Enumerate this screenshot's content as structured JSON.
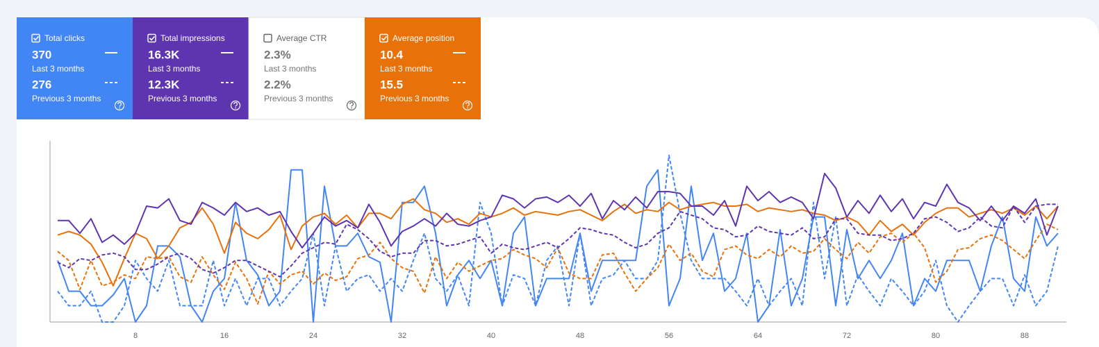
{
  "metrics": [
    {
      "name": "Total clicks",
      "checked": true,
      "color": "#4285f4",
      "current": "370",
      "current_label": "Last 3 months",
      "previous": "276",
      "previous_label": "Previous 3 months"
    },
    {
      "name": "Total impressions",
      "checked": true,
      "color": "#5e35b1",
      "current": "16.3K",
      "current_label": "Last 3 months",
      "previous": "12.3K",
      "previous_label": "Previous 3 months"
    },
    {
      "name": "Average CTR",
      "checked": false,
      "color": "#ffffff",
      "current": "2.3%",
      "current_label": "Last 3 months",
      "previous": "2.2%",
      "previous_label": "Previous 3 months"
    },
    {
      "name": "Average position",
      "checked": true,
      "color": "#e8710a",
      "current": "10.4",
      "current_label": "Last 3 months",
      "previous": "15.5",
      "previous_label": "Previous 3 months"
    }
  ],
  "chart_data": {
    "type": "line",
    "x": [
      1,
      2,
      3,
      4,
      5,
      6,
      7,
      8,
      9,
      10,
      11,
      12,
      13,
      14,
      15,
      16,
      17,
      18,
      19,
      20,
      21,
      22,
      23,
      24,
      25,
      26,
      27,
      28,
      29,
      30,
      31,
      32,
      33,
      34,
      35,
      36,
      37,
      38,
      39,
      40,
      41,
      42,
      43,
      44,
      45,
      46,
      47,
      48,
      49,
      50,
      51,
      52,
      53,
      54,
      55,
      56,
      57,
      58,
      59,
      60,
      61,
      62,
      63,
      64,
      65,
      66,
      67,
      68,
      69,
      70,
      71,
      72,
      73,
      74,
      75,
      76,
      77,
      78,
      79,
      80,
      81,
      82,
      83,
      84,
      85,
      86,
      87,
      88,
      89,
      90,
      91
    ],
    "xlim": [
      0.31,
      91.75
    ],
    "xticks": [
      8,
      16,
      24,
      32,
      40,
      48,
      56,
      64,
      72,
      80,
      88
    ],
    "ylim": [
      0,
      100
    ],
    "series": [
      {
        "color": "#4285f4",
        "dashed": true,
        "values": [
          17,
          9,
          9,
          17,
          0,
          0,
          9,
          34,
          24,
          17,
          34,
          9,
          9,
          9,
          34,
          9,
          24,
          9,
          24,
          24,
          9,
          17,
          24,
          49,
          9,
          42,
          17,
          24,
          26,
          17,
          24,
          17,
          34,
          49,
          24,
          17,
          26,
          9,
          66,
          49,
          9,
          26,
          24,
          9,
          34,
          42,
          9,
          49,
          9,
          24,
          26,
          34,
          24,
          24,
          34,
          92,
          60,
          34,
          24,
          24,
          24,
          17,
          9,
          24,
          9,
          17,
          24,
          9,
          66,
          24,
          58,
          9,
          26,
          17,
          9,
          24,
          17,
          9,
          17,
          34,
          9,
          0,
          9,
          17,
          24,
          24,
          9,
          26,
          9,
          17,
          42
        ]
      },
      {
        "color": "#4285f4",
        "dashed": false,
        "values": [
          34,
          17,
          17,
          9,
          9,
          15,
          24,
          0,
          9,
          42,
          42,
          36,
          9,
          0,
          17,
          24,
          66,
          34,
          26,
          9,
          17,
          84,
          84,
          0,
          75,
          42,
          42,
          49,
          36,
          33,
          0,
          66,
          66,
          75,
          49,
          9,
          26,
          34,
          24,
          34,
          9,
          49,
          58,
          9,
          24,
          24,
          24,
          49,
          17,
          34,
          34,
          34,
          34,
          75,
          84,
          9,
          24,
          75,
          34,
          49,
          17,
          24,
          49,
          0,
          9,
          51,
          9,
          24,
          58,
          58,
          9,
          51,
          24,
          34,
          24,
          34,
          49,
          9,
          24,
          17,
          34,
          34,
          34,
          17,
          42,
          58,
          24,
          17,
          58,
          42,
          49
        ]
      },
      {
        "color": "#e8710a",
        "dashed": true,
        "values": [
          39,
          34,
          18,
          34,
          20,
          22,
          26,
          24,
          36,
          35,
          36,
          25,
          22,
          36,
          26,
          18,
          33,
          24,
          10,
          28,
          21,
          26,
          28,
          21,
          27,
          23,
          25,
          35,
          37,
          44,
          35,
          30,
          28,
          16,
          36,
          24,
          33,
          28,
          31,
          34,
          35,
          40,
          37,
          35,
          30,
          41,
          27,
          24,
          24,
          37,
          38,
          27,
          17,
          24,
          30,
          43,
          34,
          38,
          28,
          25,
          40,
          42,
          37,
          35,
          40,
          36,
          42,
          38,
          39,
          46,
          40,
          35,
          44,
          38,
          47,
          49,
          44,
          49,
          41,
          22,
          28,
          40,
          41,
          46,
          48,
          45,
          40,
          35,
          45,
          54,
          51
        ]
      },
      {
        "color": "#e8710a",
        "dashed": false,
        "values": [
          48,
          50,
          48,
          43,
          33,
          20,
          35,
          49,
          46,
          35,
          42,
          52,
          55,
          63,
          54,
          38,
          55,
          49,
          46,
          51,
          59,
          40,
          53,
          58,
          60,
          54,
          59,
          52,
          60,
          60,
          57,
          65,
          68,
          62,
          60,
          55,
          57,
          54,
          60,
          58,
          60,
          63,
          59,
          61,
          60,
          59,
          61,
          62,
          59,
          56,
          61,
          65,
          60,
          62,
          61,
          66,
          62,
          64,
          65,
          66,
          64,
          64,
          65,
          61,
          63,
          62,
          61,
          62,
          60,
          59,
          56,
          58,
          55,
          48,
          56,
          50,
          54,
          48,
          55,
          60,
          63,
          63,
          58,
          60,
          62,
          60,
          63,
          59,
          64,
          57,
          64
        ]
      },
      {
        "color": "#5e35b1",
        "dashed": true,
        "values": [
          33,
          30,
          35,
          34,
          37,
          38,
          36,
          29,
          29,
          32,
          36,
          38,
          35,
          29,
          27,
          30,
          34,
          34,
          31,
          28,
          25,
          31,
          38,
          41,
          44,
          43,
          54,
          51,
          46,
          39,
          36,
          38,
          38,
          45,
          45,
          42,
          43,
          45,
          47,
          38,
          43,
          41,
          40,
          42,
          44,
          41,
          46,
          52,
          51,
          49,
          48,
          44,
          41,
          43,
          49,
          52,
          61,
          59,
          57,
          52,
          51,
          47,
          48,
          53,
          50,
          49,
          48,
          52,
          46,
          47,
          57,
          57,
          49,
          48,
          48,
          45,
          46,
          49,
          57,
          58,
          55,
          50,
          52,
          58,
          53,
          52,
          64,
          55,
          64,
          65,
          65
        ]
      },
      {
        "color": "#5e35b1",
        "dashed": false,
        "values": [
          56,
          56,
          49,
          57,
          44,
          48,
          43,
          49,
          64,
          63,
          68,
          56,
          54,
          66,
          63,
          59,
          66,
          61,
          63,
          59,
          61,
          50,
          41,
          49,
          58,
          53,
          56,
          52,
          65,
          55,
          42,
          50,
          53,
          57,
          53,
          60,
          54,
          53,
          56,
          58,
          70,
          68,
          63,
          68,
          69,
          66,
          70,
          64,
          71,
          57,
          67,
          62,
          69,
          63,
          72,
          72,
          71,
          64,
          64,
          59,
          67,
          53,
          75,
          67,
          72,
          66,
          69,
          66,
          57,
          82,
          74,
          58,
          67,
          60,
          70,
          61,
          68,
          57,
          66,
          64,
          76,
          66,
          63,
          56,
          64,
          56,
          64,
          60,
          68,
          48,
          64
        ]
      }
    ]
  }
}
